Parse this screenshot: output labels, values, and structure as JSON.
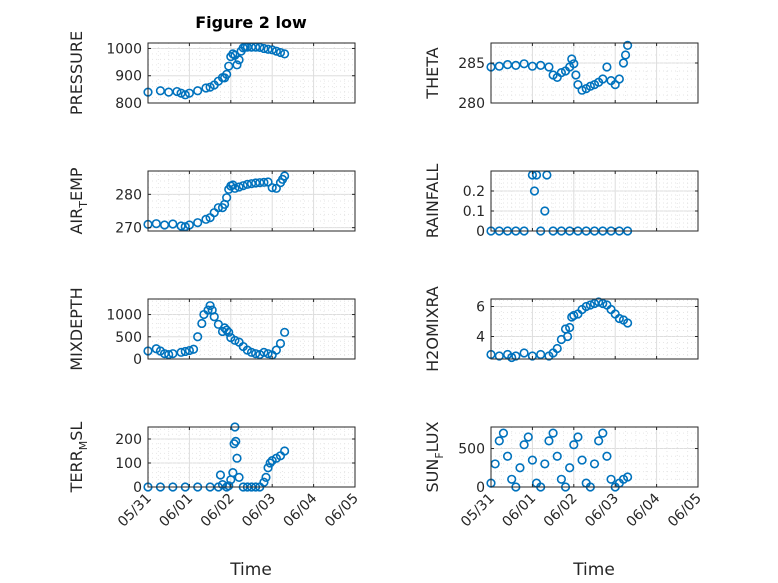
{
  "figure": {
    "title": "Figure 2 low",
    "xlabel": "Time"
  },
  "chart_data": [
    {
      "type": "scatter",
      "name": "PRESSURE",
      "ylabel": "PRESSURE",
      "xlim": [
        "05/31",
        "06/05"
      ],
      "ylim": [
        800,
        1020
      ],
      "yticks": [
        800,
        900,
        1000
      ],
      "grid": true,
      "x": [
        0.0,
        0.3,
        0.5,
        0.7,
        0.8,
        0.9,
        1.0,
        1.2,
        1.4,
        1.5,
        1.6,
        1.7,
        1.8,
        1.85,
        1.9,
        1.95,
        2.0,
        2.05,
        2.1,
        2.15,
        2.2,
        2.25,
        2.3,
        2.35,
        2.4,
        2.5,
        2.6,
        2.7,
        2.8,
        2.9,
        3.0,
        3.1,
        3.2,
        3.3
      ],
      "y": [
        840,
        845,
        840,
        842,
        836,
        830,
        836,
        845,
        855,
        858,
        866,
        880,
        893,
        892,
        905,
        935,
        970,
        980,
        975,
        940,
        958,
        990,
        1002,
        1005,
        1005,
        1005,
        1005,
        1004,
        1000,
        997,
        995,
        990,
        985,
        980
      ]
    },
    {
      "type": "scatter",
      "name": "THETA",
      "ylabel": "THETA",
      "xlim": [
        "05/31",
        "06/05"
      ],
      "ylim": [
        280,
        287.5
      ],
      "yticks": [
        280,
        285
      ],
      "grid": true,
      "x": [
        0.0,
        0.2,
        0.4,
        0.6,
        0.8,
        1.0,
        1.2,
        1.4,
        1.5,
        1.6,
        1.7,
        1.8,
        1.9,
        1.95,
        2.0,
        2.05,
        2.1,
        2.2,
        2.3,
        2.4,
        2.5,
        2.6,
        2.7,
        2.8,
        2.9,
        3.0,
        3.1,
        3.2,
        3.25,
        3.3
      ],
      "y": [
        284.5,
        284.6,
        284.8,
        284.7,
        284.9,
        284.6,
        284.7,
        284.5,
        283.5,
        283.2,
        283.8,
        284.0,
        284.5,
        285.5,
        284.9,
        283.5,
        282.3,
        281.6,
        281.8,
        282.1,
        282.3,
        282.6,
        283.0,
        284.5,
        282.8,
        282.3,
        283.0,
        285.0,
        286.0,
        287.2
      ]
    },
    {
      "type": "scatter",
      "name": "AIR_TEMP",
      "ylabel": "AIR_TEMP",
      "xlim": [
        "05/31",
        "06/05"
      ],
      "ylim": [
        269,
        287
      ],
      "yticks": [
        270,
        280
      ],
      "grid": true,
      "x": [
        0.0,
        0.2,
        0.4,
        0.6,
        0.8,
        0.9,
        1.0,
        1.2,
        1.4,
        1.5,
        1.6,
        1.7,
        1.8,
        1.85,
        1.9,
        1.95,
        2.0,
        2.05,
        2.1,
        2.2,
        2.3,
        2.4,
        2.5,
        2.6,
        2.7,
        2.8,
        2.9,
        3.0,
        3.1,
        3.2,
        3.25,
        3.3
      ],
      "y": [
        271,
        271.2,
        270.8,
        271.1,
        270.5,
        270.3,
        270.8,
        271.5,
        272.5,
        273.0,
        274.5,
        276.0,
        276.0,
        277.0,
        279.0,
        281.5,
        282.5,
        282.8,
        281.8,
        282.2,
        282.6,
        283.0,
        283.2,
        283.4,
        283.5,
        283.6,
        283.7,
        282.0,
        281.8,
        283.5,
        284.5,
        285.5
      ]
    },
    {
      "type": "scatter",
      "name": "RAINFALL",
      "ylabel": "RAINFALL",
      "xlim": [
        "05/31",
        "06/05"
      ],
      "ylim": [
        0,
        0.3
      ],
      "yticks": [
        0,
        0.1,
        0.2
      ],
      "grid": true,
      "x": [
        1.0,
        1.05,
        1.1,
        1.3,
        1.35,
        0.0,
        0.2,
        0.4,
        0.6,
        0.8,
        1.2,
        1.5,
        1.7,
        1.9,
        2.1,
        2.3,
        2.5,
        2.7,
        2.9,
        3.1,
        3.3
      ],
      "y": [
        0.28,
        0.2,
        0.28,
        0.1,
        0.28,
        0,
        0,
        0,
        0,
        0,
        0,
        0,
        0,
        0,
        0,
        0,
        0,
        0,
        0,
        0,
        0
      ],
      "points_note": "all other samples are zero"
    },
    {
      "type": "scatter",
      "name": "MIXDEPTH",
      "ylabel": "MIXDEPTH",
      "xlim": [
        "05/31",
        "06/05"
      ],
      "ylim": [
        0,
        1350
      ],
      "yticks": [
        0,
        500,
        1000
      ],
      "grid": true,
      "x": [
        0.0,
        0.2,
        0.3,
        0.4,
        0.5,
        0.6,
        0.8,
        0.9,
        1.0,
        1.1,
        1.2,
        1.3,
        1.35,
        1.45,
        1.5,
        1.55,
        1.6,
        1.7,
        1.8,
        1.85,
        1.9,
        1.95,
        2.0,
        2.1,
        2.2,
        2.3,
        2.4,
        2.5,
        2.6,
        2.7,
        2.8,
        2.9,
        3.0,
        3.1,
        3.2,
        3.3
      ],
      "y": [
        180,
        230,
        180,
        120,
        100,
        120,
        150,
        170,
        190,
        220,
        500,
        800,
        1000,
        1100,
        1200,
        1100,
        950,
        780,
        620,
        700,
        650,
        600,
        480,
        420,
        380,
        280,
        200,
        150,
        120,
        100,
        150,
        120,
        90,
        200,
        350,
        600
      ]
    },
    {
      "type": "scatter",
      "name": "H2OMIXRA",
      "ylabel": "H2OMIXRA",
      "xlim": [
        "05/31",
        "06/05"
      ],
      "ylim": [
        2.5,
        6.5
      ],
      "yticks": [
        4,
        6
      ],
      "grid": true,
      "x": [
        0.0,
        0.2,
        0.4,
        0.5,
        0.6,
        0.8,
        1.0,
        1.2,
        1.4,
        1.5,
        1.6,
        1.7,
        1.8,
        1.85,
        1.9,
        1.95,
        2.0,
        2.1,
        2.2,
        2.3,
        2.4,
        2.5,
        2.6,
        2.7,
        2.8,
        2.9,
        3.0,
        3.1,
        3.2,
        3.3
      ],
      "y": [
        2.8,
        2.7,
        2.8,
        2.6,
        2.7,
        2.9,
        2.7,
        2.8,
        2.7,
        2.9,
        3.2,
        3.8,
        4.5,
        4.0,
        4.6,
        5.3,
        5.4,
        5.5,
        5.8,
        6.0,
        6.1,
        6.2,
        6.3,
        6.2,
        6.1,
        5.8,
        5.5,
        5.2,
        5.1,
        4.9
      ]
    },
    {
      "type": "scatter",
      "name": "TERR_MSL",
      "ylabel": "TERR_MSL",
      "xlim": [
        "05/31",
        "06/05"
      ],
      "ylim": [
        0,
        250
      ],
      "yticks": [
        0,
        100,
        200
      ],
      "grid": true,
      "x": [
        0.0,
        0.3,
        0.6,
        0.9,
        1.2,
        1.5,
        1.7,
        1.75,
        1.8,
        1.9,
        1.95,
        2.0,
        2.05,
        2.08,
        2.1,
        2.12,
        2.15,
        2.2,
        2.3,
        2.4,
        2.5,
        2.6,
        2.7,
        2.8,
        2.85,
        2.9,
        2.95,
        3.0,
        3.1,
        3.2,
        3.3
      ],
      "y": [
        0,
        0,
        0,
        0,
        0,
        0,
        0,
        50,
        10,
        0,
        5,
        30,
        60,
        180,
        250,
        190,
        120,
        40,
        0,
        0,
        0,
        0,
        0,
        20,
        40,
        80,
        100,
        110,
        120,
        130,
        150
      ]
    },
    {
      "type": "scatter",
      "name": "SUN_FLUX",
      "ylabel": "SUN_FLUX",
      "xlim": [
        "05/31",
        "06/05"
      ],
      "ylim": [
        0,
        780
      ],
      "yticks": [
        0,
        500
      ],
      "grid": true,
      "x": [
        0.0,
        0.1,
        0.2,
        0.3,
        0.4,
        0.5,
        0.6,
        0.7,
        0.8,
        0.9,
        1.0,
        1.1,
        1.2,
        1.3,
        1.4,
        1.5,
        1.6,
        1.7,
        1.8,
        1.9,
        2.0,
        2.1,
        2.2,
        2.3,
        2.4,
        2.5,
        2.6,
        2.7,
        2.8,
        2.9,
        3.0,
        3.1,
        3.2,
        3.3
      ],
      "y": [
        50,
        300,
        600,
        700,
        400,
        100,
        0,
        250,
        550,
        650,
        350,
        50,
        0,
        300,
        600,
        700,
        400,
        100,
        0,
        250,
        550,
        650,
        350,
        50,
        0,
        300,
        600,
        700,
        400,
        100,
        0,
        50,
        100,
        130
      ]
    }
  ],
  "xticklabels": [
    "05/31",
    "06/01",
    "06/02",
    "06/03",
    "06/04",
    "06/05"
  ]
}
